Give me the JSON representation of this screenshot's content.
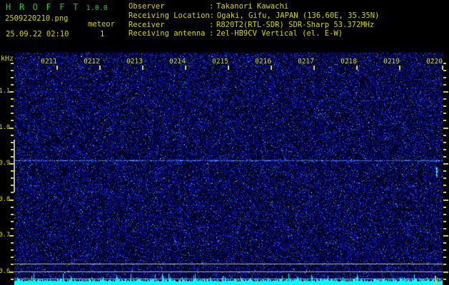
{
  "app": {
    "name": "H R O F F T",
    "version": "1.0.0"
  },
  "header": {
    "filename": "2509220210.png",
    "mode": "meteor",
    "datetime": "25.09.22 02:10",
    "count": "1",
    "colon": ":",
    "info": [
      {
        "label": "Observer",
        "value": "Takanori Kawachi"
      },
      {
        "label": "Receiving Location",
        "value": "Ogaki, Gifu, JAPAN (136.60E, 35.35N)"
      },
      {
        "label": "Receiver",
        "value": "R820T2(RTL-SDR) SDR-Sharp 53.372MHz"
      },
      {
        "label": "Receiving antenna",
        "value": "2el-HB9CV Vertical (el. E-W)"
      }
    ]
  },
  "axes": {
    "freq_unit": "kHz",
    "freq_ticks": [
      "1.1",
      "1.0",
      "0.9",
      "0.8",
      "0.7",
      "0.6"
    ],
    "freq_minor_step_khz": 0.02,
    "time_ticks": [
      "0211",
      "0212",
      "0213",
      "0214",
      "0215",
      "0216",
      "0217",
      "0218",
      "0219",
      "0220"
    ]
  },
  "colors": {
    "background": "#000000",
    "label_yellow": "#d4d400",
    "title_green": "#00dd00",
    "noise_blue": "#0000bb",
    "signal_cyan": "#00ffff",
    "grid_gray": "#b4b4b4",
    "band_marker_gray": "#b0b0b0"
  },
  "chart_data": {
    "type": "heatmap",
    "title": "HROFFT 1.0.0 radio meteor echo spectrogram, 25.09.22 02:10-02:20",
    "x_axis": {
      "start": "02:10",
      "end": "02:20",
      "minutes_per_division": 1,
      "tick_labels": [
        "0211",
        "0212",
        "0213",
        "0214",
        "0215",
        "0216",
        "0217",
        "0218",
        "0219",
        "0220"
      ]
    },
    "y_axis": {
      "unit": "kHz",
      "major_ticks": [
        1.1,
        1.0,
        0.9,
        0.8,
        0.7,
        0.6
      ],
      "minor_step": 0.02,
      "range": [
        0.56,
        1.21
      ]
    },
    "meteor_count": 1,
    "background_texture": "dense dark-blue radio noise speckle on black",
    "features": [
      {
        "name": "carrier-line",
        "freq_khz": 0.91,
        "time_extent": "full width 02:10-02:20",
        "appearance": "speckled blue/cyan horizontal line"
      },
      {
        "name": "meteor-echo",
        "minutes_after_start": 9.85,
        "time": "~02:19:51",
        "freq_khz": [
          0.865,
          0.89
        ],
        "appearance": "short bright cyan vertical streak"
      },
      {
        "name": "echo-band-marker",
        "freq_khz": [
          0.82,
          0.97
        ],
        "position": "gray bar at left plot edge"
      },
      {
        "name": "level-grid-lines",
        "freq_khz": [
          0.62,
          0.6,
          0.58
        ],
        "appearance": "three light-gray horizontal reference lines"
      },
      {
        "name": "event-marker",
        "minutes_after_start": 9.82,
        "appearance": "yellow vertical line in signal-level strip"
      }
    ],
    "signal_strip": {
      "position": "bottom edge",
      "color": "#00ffff",
      "description": "cyan signal-level waveform, flat noise floor with small spikes"
    }
  }
}
